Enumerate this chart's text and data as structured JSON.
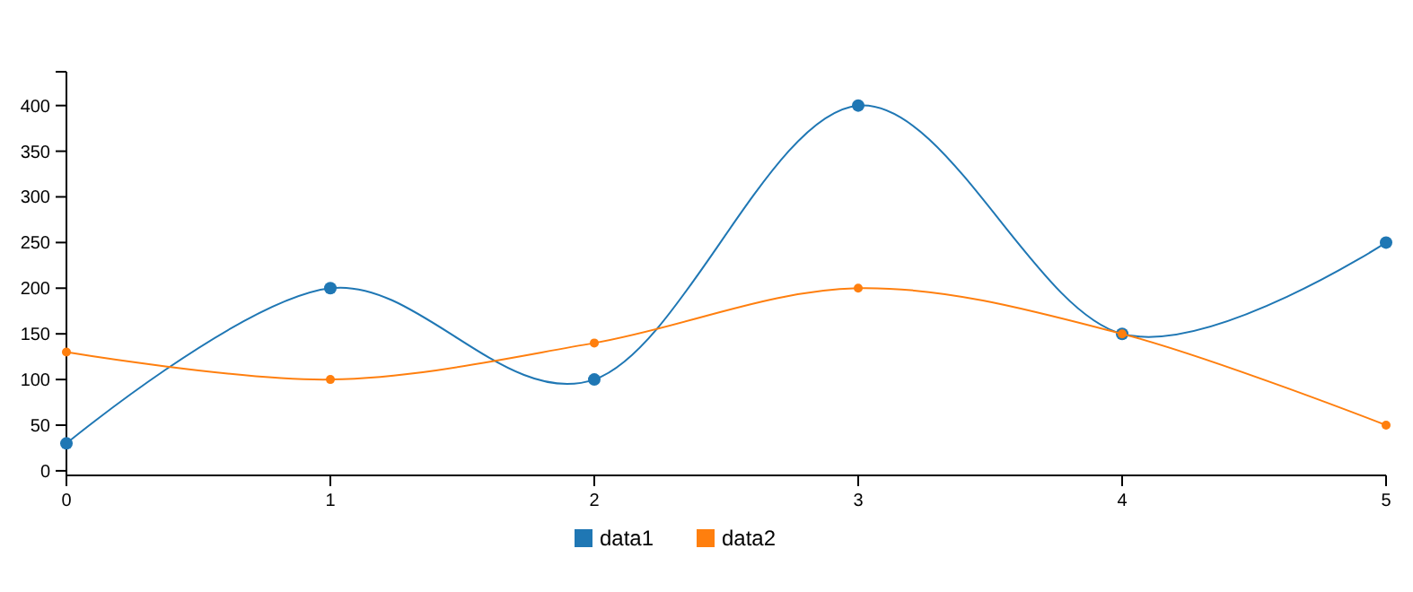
{
  "chart_data": {
    "type": "line",
    "x": [
      0,
      1,
      2,
      3,
      4,
      5
    ],
    "xlim": [
      0,
      5
    ],
    "xticks": [
      0,
      1,
      2,
      3,
      4,
      5
    ],
    "ylim": [
      -5,
      437
    ],
    "yticks": [
      0,
      50,
      100,
      150,
      200,
      250,
      300,
      350,
      400
    ],
    "marker": "circle",
    "legend": "bottom",
    "grid": false,
    "series": [
      {
        "name": "data1",
        "color": "#1f77b4",
        "values": [
          30,
          200,
          100,
          400,
          150,
          250
        ]
      },
      {
        "name": "data2",
        "color": "#ff7f0e",
        "values": [
          130,
          100,
          140,
          200,
          150,
          50
        ]
      }
    ]
  }
}
